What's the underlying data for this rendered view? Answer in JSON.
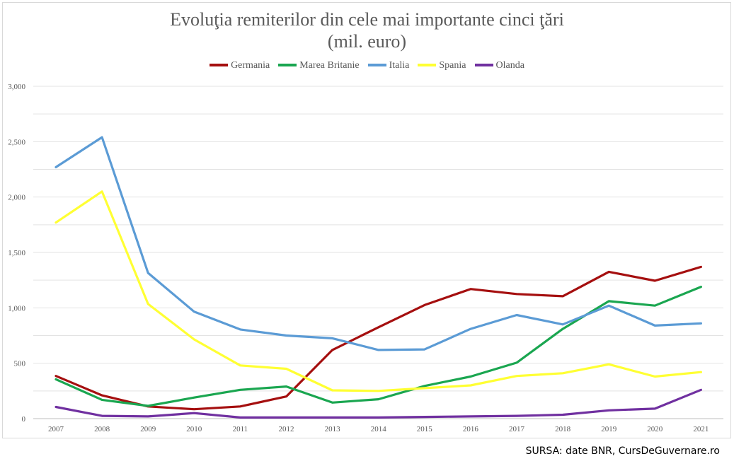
{
  "chart_data": {
    "type": "line",
    "title_lines": [
      "Evoluţia remiterilor din cele mai importante cinci ţări",
      "(mil. euro)"
    ],
    "xlabel": "",
    "ylabel": "",
    "categories": [
      "2007",
      "2008",
      "2009",
      "2010",
      "2011",
      "2012",
      "2013",
      "2014",
      "2015",
      "2016",
      "2017",
      "2018",
      "2019",
      "2020",
      "2021"
    ],
    "ylim": [
      0,
      3000
    ],
    "y_ticks": [
      0,
      500,
      1000,
      1500,
      2000,
      2500,
      3000
    ],
    "y_tick_labels": [
      "0",
      "500",
      "1,000",
      "1,500",
      "2,000",
      "2,500",
      "3,000"
    ],
    "grid": true,
    "legend_position": "top-center",
    "series": [
      {
        "name": "Germania",
        "color": "#a50f0f",
        "values": [
          385,
          210,
          110,
          85,
          110,
          200,
          620,
          825,
          1025,
          1170,
          1125,
          1105,
          1325,
          1245,
          1370
        ]
      },
      {
        "name": "Marea Britanie",
        "color": "#1aa650",
        "values": [
          355,
          170,
          115,
          190,
          260,
          290,
          145,
          175,
          295,
          380,
          505,
          810,
          1060,
          1020,
          1190
        ]
      },
      {
        "name": "Italia",
        "color": "#5b9bd5",
        "values": [
          2270,
          2540,
          1315,
          965,
          805,
          750,
          725,
          620,
          625,
          810,
          935,
          850,
          1020,
          840,
          860
        ]
      },
      {
        "name": "Spania",
        "color": "#ffff33",
        "values": [
          1770,
          2050,
          1035,
          715,
          480,
          450,
          255,
          250,
          275,
          300,
          385,
          410,
          490,
          380,
          420
        ]
      },
      {
        "name": "Olanda",
        "color": "#7030a0",
        "values": [
          105,
          25,
          20,
          50,
          10,
          10,
          10,
          10,
          15,
          20,
          25,
          35,
          75,
          90,
          260
        ]
      }
    ]
  },
  "source_note": "SURSA: date BNR, CursDeGuvernare.ro"
}
